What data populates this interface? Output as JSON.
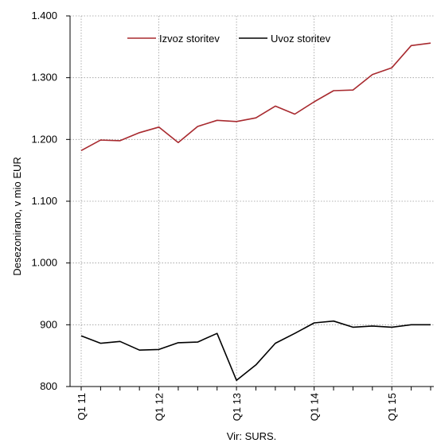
{
  "chart_data": {
    "type": "line",
    "ylabel": "Desezonirano, v mio EUR",
    "source": "Vir: SURS.",
    "ylim": [
      800,
      1400
    ],
    "y_ticks": [
      "800",
      "900",
      "1.000",
      "1.100",
      "1.200",
      "1.300",
      "1.400"
    ],
    "y_tick_values": [
      800,
      900,
      1000,
      1100,
      1200,
      1300,
      1400
    ],
    "x_tick_labels": [
      "Q1 11",
      "Q1 12",
      "Q1 13",
      "Q1 14",
      "Q1 15"
    ],
    "x_tick_indices": [
      0,
      4,
      8,
      12,
      16
    ],
    "grid": true,
    "legend_placement": "top-center",
    "categories": [
      "Q1 11",
      "Q2 11",
      "Q3 11",
      "Q4 11",
      "Q1 12",
      "Q2 12",
      "Q3 12",
      "Q4 12",
      "Q1 13",
      "Q2 13",
      "Q3 13",
      "Q4 13",
      "Q1 14",
      "Q2 14",
      "Q3 14",
      "Q4 14",
      "Q1 15",
      "Q2 15",
      "Q3 15"
    ],
    "series": [
      {
        "name": "Izvoz storitev",
        "color": "#a82a2f",
        "values": [
          1182,
          1199,
          1198,
          1211,
          1220,
          1195,
          1221,
          1231,
          1229,
          1235,
          1254,
          1241,
          1261,
          1279,
          1280,
          1305,
          1316,
          1352,
          1356
        ]
      },
      {
        "name": "Uvoz storitev",
        "color": "#000000",
        "values": [
          882,
          870,
          873,
          859,
          860,
          871,
          872,
          886,
          810,
          835,
          870,
          886,
          903,
          906,
          896,
          898,
          896,
          900,
          900
        ]
      }
    ]
  }
}
